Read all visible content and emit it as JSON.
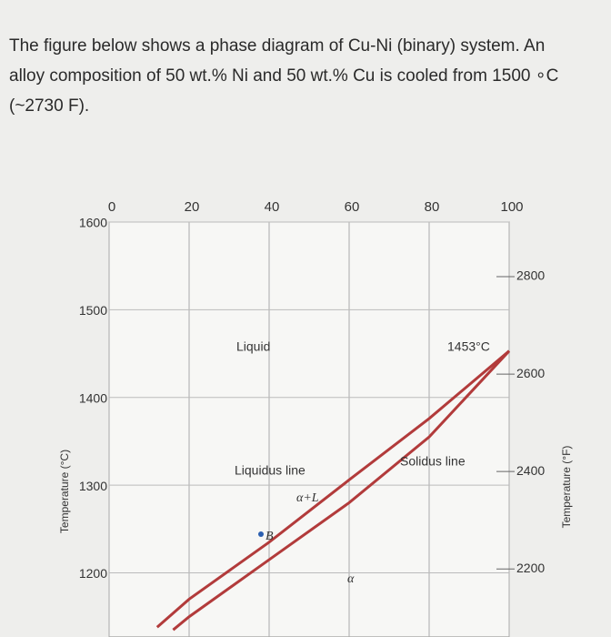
{
  "question": [
    "The figure below shows a phase diagram of Cu-Ni (binary) system. An",
    "alloy composition of 50 wt.% Ni and 50 wt.% Cu is cooled from 1500 ∘C",
    "(~2730 F)."
  ],
  "chart_data": {
    "type": "line",
    "xlim": [
      0,
      100
    ],
    "xticks": [
      0,
      20,
      40,
      60,
      80,
      100
    ],
    "ylim": [
      1130,
      1600
    ],
    "yticks": [
      1200,
      1300,
      1400,
      1500,
      1600
    ],
    "y2lim": [
      2066,
      2912
    ],
    "y2ticks": [
      2200,
      2400,
      2600,
      2800
    ],
    "y_label": "Temperature (°C)",
    "y2_label": "Temperature (°F)",
    "grid": true,
    "series": [
      {
        "name": "Liquidus line",
        "color": "#b23b3b",
        "x": [
          12,
          20,
          40,
          60,
          80,
          100
        ],
        "values": [
          1138,
          1170,
          1235,
          1306,
          1376,
          1453
        ]
      },
      {
        "name": "Solidus line",
        "color": "#b23b3b",
        "x": [
          16,
          20,
          40,
          60,
          80,
          100
        ],
        "values": [
          1135,
          1150,
          1215,
          1280,
          1355,
          1453
        ]
      }
    ],
    "annotations": [
      "Liquid",
      "1453°C",
      "α+L",
      "B",
      "α"
    ]
  }
}
